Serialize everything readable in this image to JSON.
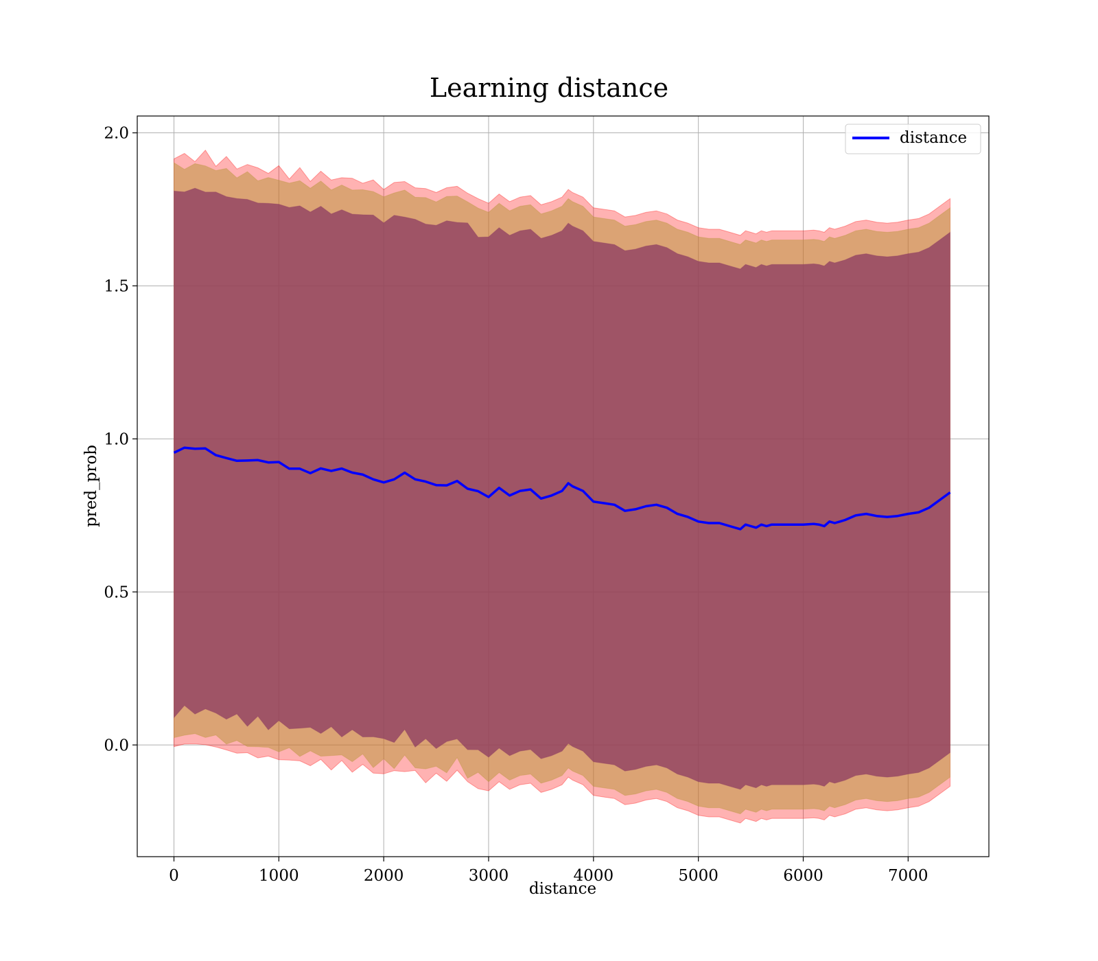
{
  "chart_data": {
    "type": "line",
    "title": "Learning distance",
    "xlabel": "distance",
    "ylabel": "pred_prob",
    "xlim": [
      -350,
      7770
    ],
    "ylim": [
      -0.365,
      2.055
    ],
    "xticks": [
      "0",
      "1000",
      "2000",
      "3000",
      "4000",
      "5000",
      "6000",
      "7000"
    ],
    "yticks": [
      "0.0",
      "0.5",
      "1.0",
      "1.5",
      "2.0"
    ],
    "grid": true,
    "legend": {
      "position": "top-right",
      "entries": [
        "distance"
      ]
    },
    "colors": {
      "line": "#0000ff",
      "band_outer": "#ff0000",
      "band_mid": "#b89436",
      "band_inner": "#8b3a62",
      "grid": "#b0b0b0"
    },
    "bands": [
      {
        "level": "outer",
        "halfwidth": [
          0.96,
          0.96
        ],
        "alpha": 0.3
      },
      {
        "level": "mid",
        "halfwidth": [
          0.93,
          0.93
        ],
        "alpha": 0.5
      },
      {
        "level": "inner",
        "halfwidth": [
          0.85,
          0.85
        ],
        "alpha": 0.75
      }
    ],
    "series": [
      {
        "name": "distance",
        "x": [
          0,
          100,
          200,
          300,
          400,
          500,
          600,
          700,
          800,
          900,
          1000,
          1100,
          1200,
          1300,
          1400,
          1500,
          1600,
          1700,
          1800,
          1900,
          2000,
          2100,
          2200,
          2300,
          2400,
          2500,
          2600,
          2700,
          2800,
          2900,
          3000,
          3100,
          3200,
          3300,
          3400,
          3500,
          3600,
          3700,
          3760,
          3800,
          3900,
          4000,
          4100,
          4200,
          4300,
          4400,
          4500,
          4600,
          4700,
          4800,
          4900,
          5000,
          5100,
          5200,
          5300,
          5400,
          5450,
          5500,
          5550,
          5600,
          5650,
          5700,
          5800,
          5900,
          6000,
          6100,
          6150,
          6200,
          6250,
          6300,
          6350,
          6400,
          6500,
          6600,
          6700,
          6800,
          6900,
          7000,
          7100,
          7200,
          7300,
          7400
        ],
        "y": [
          0.955,
          0.965,
          0.96,
          0.965,
          0.95,
          0.945,
          0.935,
          0.93,
          0.925,
          0.915,
          0.92,
          0.905,
          0.91,
          0.895,
          0.905,
          0.89,
          0.895,
          0.885,
          0.885,
          0.875,
          0.865,
          0.87,
          0.885,
          0.86,
          0.855,
          0.85,
          0.855,
          0.87,
          0.84,
          0.825,
          0.81,
          0.84,
          0.815,
          0.83,
          0.835,
          0.805,
          0.815,
          0.83,
          0.855,
          0.845,
          0.83,
          0.795,
          0.79,
          0.785,
          0.765,
          0.77,
          0.78,
          0.785,
          0.775,
          0.755,
          0.745,
          0.73,
          0.725,
          0.725,
          0.715,
          0.705,
          0.72,
          0.715,
          0.71,
          0.72,
          0.715,
          0.72,
          0.72,
          0.72,
          0.72,
          0.722,
          0.72,
          0.715,
          0.73,
          0.725,
          0.73,
          0.735,
          0.75,
          0.755,
          0.748,
          0.745,
          0.748,
          0.755,
          0.76,
          0.775,
          0.8,
          0.825
        ]
      }
    ]
  }
}
